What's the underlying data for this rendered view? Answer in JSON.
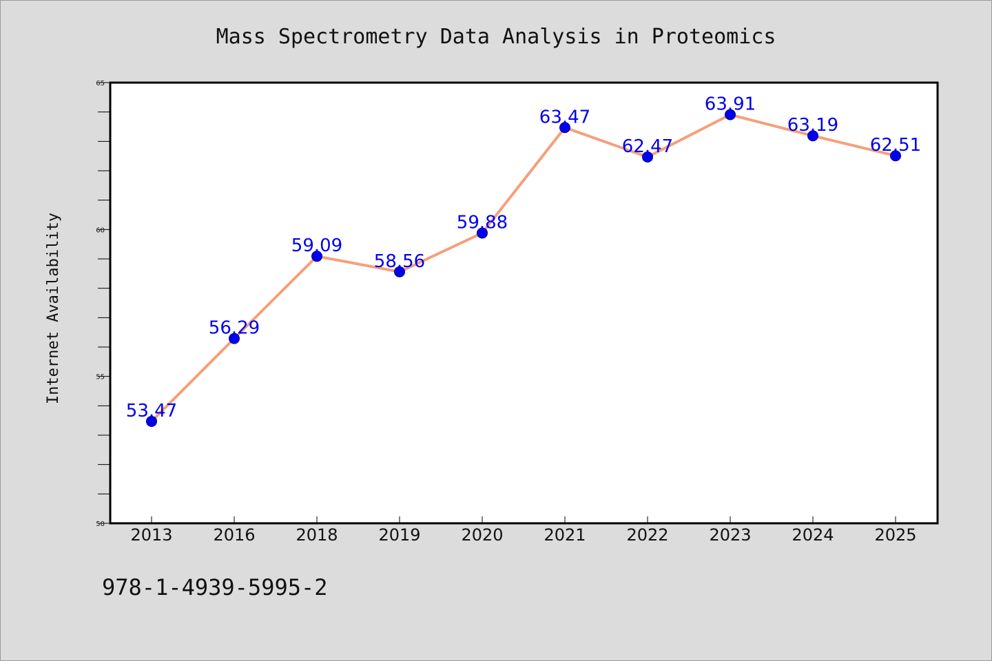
{
  "chart_data": {
    "type": "line",
    "title": "Mass Spectrometry Data Analysis in Proteomics",
    "xlabel": "",
    "ylabel": "Internet Availability",
    "categories": [
      "2013",
      "2016",
      "2018",
      "2019",
      "2020",
      "2021",
      "2022",
      "2023",
      "2024",
      "2025"
    ],
    "series": [
      {
        "values": [
          53.47,
          56.29,
          59.09,
          58.56,
          59.88,
          63.47,
          62.47,
          63.91,
          63.19,
          62.51
        ]
      }
    ],
    "data_labels": [
      "53.47",
      "56.29",
      "59.09",
      "58.56",
      "59.88",
      "63.47",
      "62.47",
      "63.91",
      "63.19",
      "62.51"
    ],
    "ylim": [
      50,
      65
    ],
    "yticks": [
      "50",
      "55",
      "60",
      "65"
    ],
    "grid": false,
    "legend": "none",
    "line_color": "#f4a07c",
    "marker_color": "#0000ee",
    "label_color": "#0000ee"
  },
  "footnote": "978-1-4939-5995-2"
}
